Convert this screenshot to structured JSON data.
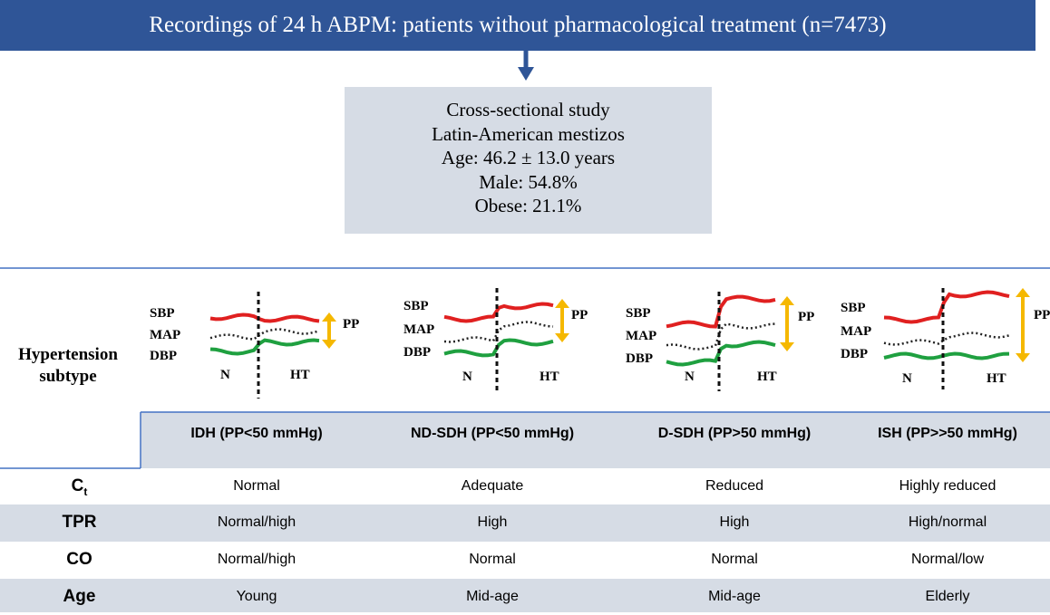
{
  "header": {
    "title": "Recordings of 24 h ABPM: patients without pharmacological treatment  (n=7473)"
  },
  "study_box": {
    "lines": [
      "Cross-sectional study",
      "Latin-American mestizos",
      "Age: 46.2 ± 13.0 years",
      "Male: 54.8%",
      "Obese: 21.1%"
    ]
  },
  "row_title": "Hypertension subtype",
  "panels": [
    {
      "sbp": "SBP",
      "map": "MAP",
      "dbp": "DBP",
      "n": "N",
      "ht": "HT",
      "pp": "PP"
    },
    {
      "sbp": "SBP",
      "map": "MAP",
      "dbp": "DBP",
      "n": "N",
      "ht": "HT",
      "pp": "PP"
    },
    {
      "sbp": "SBP",
      "map": "MAP",
      "dbp": "DBP",
      "n": "N",
      "ht": "HT",
      "pp": "PP"
    },
    {
      "sbp": "SBP",
      "map": "MAP",
      "dbp": "DBP",
      "n": "N",
      "ht": "HT",
      "pp": "PP"
    }
  ],
  "table": {
    "columns": [
      "IDH (PP<50 mmHg)",
      "ND-SDH (PP<50 mmHg)",
      "D-SDH (PP>50 mmHg)",
      "ISH (PP>>50 mmHg)"
    ],
    "rows": [
      {
        "label": "C",
        "label_sub": "t",
        "cells": [
          "Normal",
          "Adequate",
          "Reduced",
          "Highly reduced"
        ]
      },
      {
        "label": "TPR",
        "cells": [
          "Normal/high",
          "High",
          "High",
          "High/normal"
        ]
      },
      {
        "label": "CO",
        "cells": [
          "Normal/high",
          "Normal",
          "Normal",
          "Normal/low"
        ]
      },
      {
        "label": "Age",
        "cells": [
          "Young",
          "Mid-age",
          "Mid-age",
          "Elderly"
        ]
      }
    ]
  }
}
